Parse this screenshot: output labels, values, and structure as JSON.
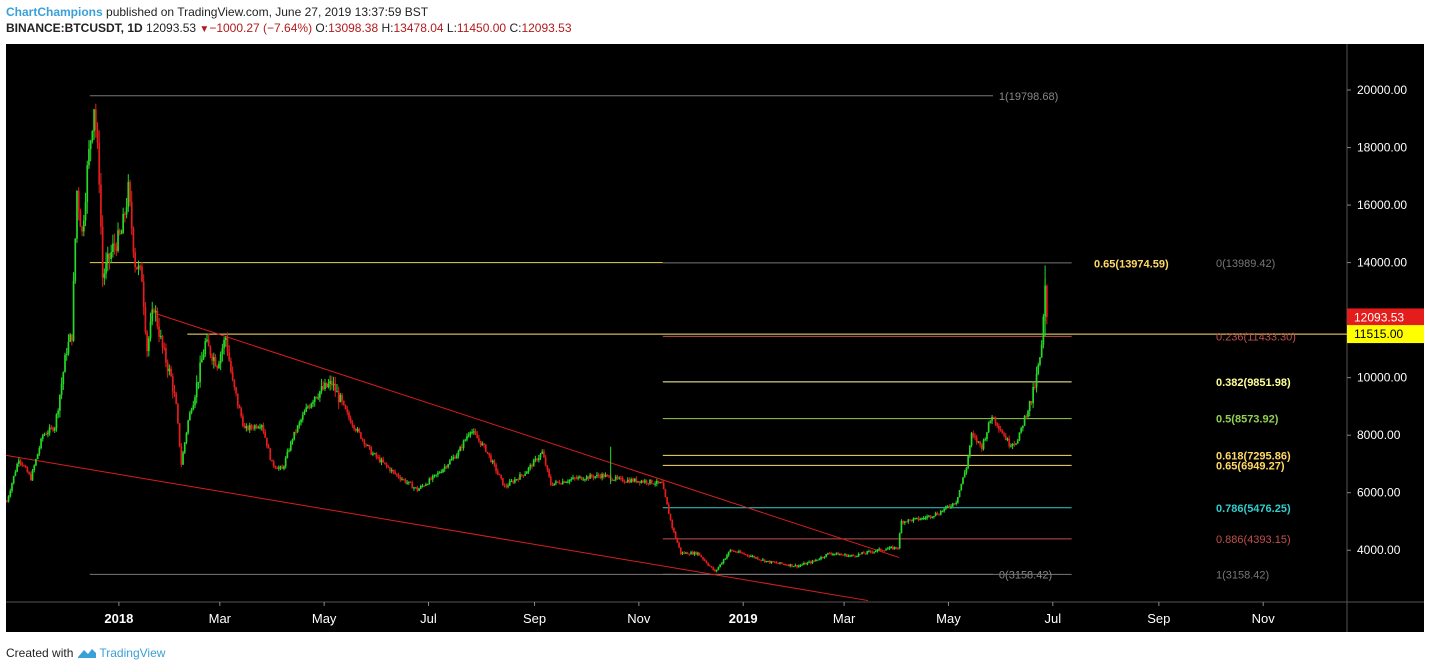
{
  "header": {
    "author": "ChartChampions",
    "published_text": "published on TradingView.com, June 27, 2019 13:37:59 BST",
    "symbol": "BINANCE:BTCUSDT, 1D",
    "last": "12093.53",
    "change": "−1000.27 (−7.64%)",
    "o_label": "O:",
    "o_value": "13098.38",
    "h_label": "H:",
    "h_value": "13478.04",
    "l_label": "L:",
    "l_value": "11450.00",
    "c_label": "C:",
    "c_value": "12093.53"
  },
  "footer": {
    "created_with": "Created with",
    "brand": "TradingView"
  },
  "colors": {
    "background": "#000000",
    "up": "#26d926",
    "down": "#e51c1c",
    "trendline": "#d81e1e"
  },
  "chart_data": {
    "type": "candlestick",
    "y_ticks": [
      "20000.00",
      "18000.00",
      "16000.00",
      "14000.00",
      "10000.00",
      "8000.00",
      "6000.00",
      "4000.00"
    ],
    "y_values": [
      20000,
      18000,
      16000,
      14000,
      10000,
      8000,
      6000,
      4000
    ],
    "ylim": [
      2200,
      21600
    ],
    "x_ticks": [
      {
        "label": "2018",
        "date": "2018-01-01",
        "bold": true
      },
      {
        "label": "Mar",
        "date": "2018-03-01",
        "bold": false
      },
      {
        "label": "May",
        "date": "2018-05-01",
        "bold": false
      },
      {
        "label": "Jul",
        "date": "2018-07-01",
        "bold": false
      },
      {
        "label": "Sep",
        "date": "2018-09-01",
        "bold": false
      },
      {
        "label": "Nov",
        "date": "2018-11-01",
        "bold": false
      },
      {
        "label": "2019",
        "date": "2019-01-01",
        "bold": true
      },
      {
        "label": "Mar",
        "date": "2019-03-01",
        "bold": false
      },
      {
        "label": "May",
        "date": "2019-05-01",
        "bold": false
      },
      {
        "label": "Jul",
        "date": "2019-07-01",
        "bold": false
      },
      {
        "label": "Sep",
        "date": "2019-09-01",
        "bold": false
      },
      {
        "label": "Nov",
        "date": "2019-11-01",
        "bold": false
      }
    ],
    "xlim": [
      "2017-10-27",
      "2019-12-20"
    ],
    "price_labels": [
      {
        "value": 12093.53,
        "text": "12093.53",
        "bg": "#e51c1c",
        "fg": "#ffffff"
      },
      {
        "value": 11515,
        "text": "11515.00",
        "bg": "#ffff00",
        "fg": "#000000"
      }
    ],
    "horizontal_lines": [
      {
        "value": 14000,
        "start": "2017-12-15",
        "end": "2018-11-15",
        "color": "#e6d94d"
      },
      {
        "value": 11515,
        "start": "2018-02-10",
        "end": "2019-12-20",
        "color": "#ffe66b"
      }
    ],
    "fib_left": {
      "start": "2017-12-15",
      "end": "2019-05-27",
      "levels": [
        {
          "value": 19798.68,
          "text": "1(19798.68)",
          "color": "#777777"
        },
        {
          "value": 3158.42,
          "text": "0(3158.42)",
          "color": "#777777"
        }
      ]
    },
    "fib_right": {
      "start": "2018-11-15",
      "end": "2019-07-12",
      "levels": [
        {
          "value": 13989.42,
          "text": "0(13989.42)",
          "color": "#777777"
        },
        {
          "value": 11433.3,
          "text": "0.236(11433.30)",
          "color": "#c0504d"
        },
        {
          "value": 9851.98,
          "text": "0.382(9851.98)",
          "color": "#ffff99"
        },
        {
          "value": 8573.92,
          "text": "0.5(8573.92)",
          "color": "#92d050"
        },
        {
          "value": 7295.86,
          "text": "0.618(7295.86)",
          "color": "#ffd966"
        },
        {
          "value": 6949.27,
          "text": "0.65(6949.27)",
          "color": "#ffd966"
        },
        {
          "value": 5476.25,
          "text": "0.786(5476.25)",
          "color": "#33cccc"
        },
        {
          "value": 4393.15,
          "text": "0.886(4393.15)",
          "color": "#c0504d"
        },
        {
          "value": 3158.42,
          "text": "1(3158.42)",
          "color": "#777777"
        }
      ],
      "extra": [
        {
          "value": 13974.59,
          "text": "0.65(13974.59)",
          "color": "#ffd966",
          "end": "2019-05-27"
        }
      ]
    },
    "trendlines": [
      {
        "from": {
          "date": "2018-01-24",
          "value": 12200
        },
        "to": {
          "date": "2019-04-02",
          "value": 3750
        }
      },
      {
        "from": {
          "date": "2017-10-27",
          "value": 7300
        },
        "to": {
          "date": "2019-03-15",
          "value": 2250
        }
      }
    ],
    "ohlc_path": [
      [
        "2017-10-27",
        5700
      ],
      [
        "2017-11-03",
        7200
      ],
      [
        "2017-11-10",
        6500
      ],
      [
        "2017-11-17",
        8000
      ],
      [
        "2017-11-24",
        8300
      ],
      [
        "2017-11-28",
        9800
      ],
      [
        "2017-12-01",
        11000
      ],
      [
        "2017-12-04",
        11500
      ],
      [
        "2017-12-07",
        16500
      ],
      [
        "2017-12-10",
        15000
      ],
      [
        "2017-12-13",
        17200
      ],
      [
        "2017-12-17",
        19500
      ],
      [
        "2017-12-20",
        17000
      ],
      [
        "2017-12-22",
        13500
      ],
      [
        "2017-12-25",
        14000
      ],
      [
        "2017-12-28",
        14500
      ],
      [
        "2018-01-02",
        15000
      ],
      [
        "2018-01-06",
        16500
      ],
      [
        "2018-01-10",
        14000
      ],
      [
        "2018-01-14",
        13500
      ],
      [
        "2018-01-17",
        11000
      ],
      [
        "2018-01-21",
        12500
      ],
      [
        "2018-01-26",
        11000
      ],
      [
        "2018-01-31",
        10000
      ],
      [
        "2018-02-03",
        9000
      ],
      [
        "2018-02-06",
        7000
      ],
      [
        "2018-02-10",
        8500
      ],
      [
        "2018-02-16",
        10000
      ],
      [
        "2018-02-20",
        11200
      ],
      [
        "2018-02-27",
        10500
      ],
      [
        "2018-03-04",
        11400
      ],
      [
        "2018-03-08",
        9800
      ],
      [
        "2018-03-15",
        8200
      ],
      [
        "2018-03-25",
        8400
      ],
      [
        "2018-03-31",
        7000
      ],
      [
        "2018-04-06",
        6800
      ],
      [
        "2018-04-12",
        7900
      ],
      [
        "2018-04-20",
        8900
      ],
      [
        "2018-04-25",
        9400
      ],
      [
        "2018-05-05",
        9800
      ],
      [
        "2018-05-15",
        8600
      ],
      [
        "2018-05-28",
        7400
      ],
      [
        "2018-06-10",
        6700
      ],
      [
        "2018-06-24",
        6100
      ],
      [
        "2018-07-05",
        6600
      ],
      [
        "2018-07-18",
        7400
      ],
      [
        "2018-07-25",
        8200
      ],
      [
        "2018-08-03",
        7500
      ],
      [
        "2018-08-14",
        6200
      ],
      [
        "2018-08-26",
        6700
      ],
      [
        "2018-09-05",
        7400
      ],
      [
        "2018-09-10",
        6300
      ],
      [
        "2018-09-25",
        6500
      ],
      [
        "2018-10-10",
        6600
      ],
      [
        "2018-10-20",
        6450
      ],
      [
        "2018-11-05",
        6400
      ],
      [
        "2018-11-14",
        6300
      ],
      [
        "2018-11-20",
        4800
      ],
      [
        "2018-11-25",
        3900
      ],
      [
        "2018-12-05",
        3900
      ],
      [
        "2018-12-15",
        3250
      ],
      [
        "2018-12-24",
        4000
      ],
      [
        "2019-01-05",
        3800
      ],
      [
        "2019-01-15",
        3600
      ],
      [
        "2019-02-01",
        3450
      ],
      [
        "2019-02-10",
        3600
      ],
      [
        "2019-02-20",
        3900
      ],
      [
        "2019-03-05",
        3800
      ],
      [
        "2019-03-20",
        4000
      ],
      [
        "2019-04-01",
        4100
      ],
      [
        "2019-04-03",
        5000
      ],
      [
        "2019-04-15",
        5100
      ],
      [
        "2019-04-25",
        5300
      ],
      [
        "2019-05-05",
        5700
      ],
      [
        "2019-05-11",
        6900
      ],
      [
        "2019-05-14",
        8000
      ],
      [
        "2019-05-20",
        7600
      ],
      [
        "2019-05-26",
        8700
      ],
      [
        "2019-05-31",
        8200
      ],
      [
        "2019-06-05",
        7700
      ],
      [
        "2019-06-10",
        7800
      ],
      [
        "2019-06-14",
        8600
      ],
      [
        "2019-06-18",
        9200
      ],
      [
        "2019-06-21",
        10000
      ],
      [
        "2019-06-24",
        11000
      ],
      [
        "2019-06-25",
        12000
      ],
      [
        "2019-06-26",
        13000
      ],
      [
        "2019-06-27",
        12100
      ]
    ],
    "special_wicks": [
      {
        "date": "2018-10-15",
        "low": 6300,
        "high": 7600
      },
      {
        "date": "2019-06-26",
        "low": 11450,
        "high": 13900
      }
    ]
  }
}
